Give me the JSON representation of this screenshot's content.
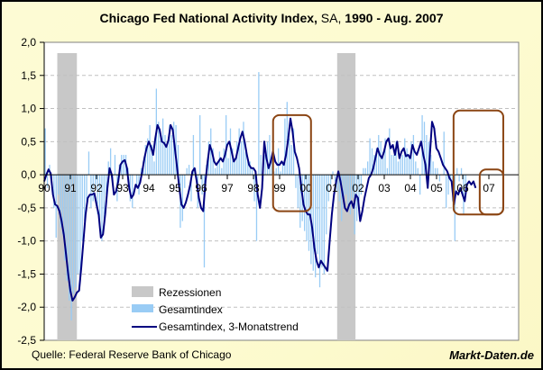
{
  "title": {
    "part1": "Chicago Fed National Activity Index,",
    "part2": " SA,",
    "part3": " 1990 - Aug. 2007"
  },
  "footer": {
    "source": "Quelle: Federal Reserve Bank of Chicago",
    "brand": "Markt-Daten.de"
  },
  "colors": {
    "background": "#fdfbd0",
    "plot_bg": "#ffffff",
    "recession": "#c8c8c8",
    "bars": "#99ccf5",
    "trend": "#000080",
    "highlight": "#8b4513",
    "grid": "#c0c0c0"
  },
  "chart_data": {
    "type": "bar+line",
    "title": "Chicago Fed National Activity Index, SA, 1990 - Aug. 2007",
    "xlabel": "",
    "ylabel": "",
    "ylim": [
      -2.5,
      2.0
    ],
    "xlim": [
      1990.0,
      2008.0
    ],
    "grid": true,
    "y_ticks": [
      "2,0",
      "1,5",
      "1,0",
      "0,5",
      "0,0",
      "-0,5",
      "-1,0",
      "-1,5",
      "-2,0",
      "-2,5"
    ],
    "y_tick_values": [
      2.0,
      1.5,
      1.0,
      0.5,
      0.0,
      -0.5,
      -1.0,
      -1.5,
      -2.0,
      -2.5
    ],
    "x_ticks": [
      "90",
      "91",
      "92",
      "93",
      "94",
      "95",
      "96",
      "97",
      "98",
      "99",
      "00",
      "01",
      "02",
      "03",
      "04",
      "05",
      "06",
      "07"
    ],
    "legend": {
      "position": "bottom-left-inside",
      "entries": [
        "Rezessionen",
        "Gesamtindex",
        "Gesamtindex, 3-Monatstrend"
      ]
    },
    "recessions": [
      {
        "start": 1990.5,
        "end": 1991.25
      },
      {
        "start": 2001.2,
        "end": 2001.9
      }
    ],
    "highlight_boxes": [
      {
        "start": 1998.75,
        "end": 2000.2,
        "ymin": -0.55,
        "ymax": 0.9
      },
      {
        "start": 2005.65,
        "end": 2007.55,
        "ymin": -0.6,
        "ymax": 0.97
      },
      {
        "start": 2006.65,
        "end": 2007.55,
        "ymin": -0.6,
        "ymax": 0.08
      }
    ],
    "series": [
      {
        "name": "Gesamtindex, 3-Monatstrend",
        "type": "line",
        "x_start": 1990.0,
        "step": 0.0833,
        "values": [
          -0.1,
          0.0,
          0.08,
          0.02,
          -0.3,
          -0.45,
          -0.47,
          -0.55,
          -0.7,
          -0.9,
          -1.2,
          -1.5,
          -1.75,
          -1.9,
          -1.85,
          -1.78,
          -1.75,
          -1.4,
          -1.0,
          -0.6,
          -0.35,
          -0.3,
          -0.3,
          -0.28,
          -0.45,
          -0.6,
          -0.95,
          -0.9,
          -0.6,
          -0.2,
          0.1,
          0.0,
          -0.3,
          -0.25,
          -0.1,
          0.15,
          0.2,
          0.22,
          0.1,
          -0.2,
          -0.35,
          -0.3,
          -0.15,
          -0.2,
          -0.12,
          0.05,
          0.25,
          0.4,
          0.5,
          0.42,
          0.3,
          0.55,
          0.75,
          0.68,
          0.5,
          0.48,
          0.42,
          0.52,
          0.75,
          0.68,
          0.4,
          0.1,
          -0.2,
          -0.45,
          -0.5,
          -0.42,
          -0.3,
          -0.15,
          0.05,
          0.1,
          -0.1,
          -0.35,
          -0.5,
          -0.55,
          -0.1,
          0.2,
          0.45,
          0.35,
          0.2,
          0.15,
          0.2,
          0.25,
          0.2,
          0.3,
          0.45,
          0.5,
          0.35,
          0.2,
          0.25,
          0.4,
          0.55,
          0.65,
          0.5,
          0.3,
          0.15,
          0.1,
          0.1,
          0.05,
          -0.3,
          -0.5,
          -0.2,
          0.5,
          0.25,
          0.1,
          0.2,
          0.35,
          0.2,
          0.15,
          0.15,
          0.2,
          0.15,
          0.3,
          0.55,
          0.85,
          0.65,
          0.35,
          0.25,
          0.1,
          -0.2,
          -0.45,
          -0.55,
          -0.6,
          -0.6,
          -0.8,
          -1.1,
          -1.3,
          -1.4,
          -1.3,
          -1.35,
          -1.4,
          -1.45,
          -1.0,
          -0.6,
          -0.3,
          -0.1,
          0.05,
          -0.1,
          -0.3,
          -0.5,
          -0.55,
          -0.45,
          -0.4,
          -0.5,
          -0.3,
          -0.35,
          -0.7,
          -0.55,
          -0.35,
          -0.2,
          -0.05,
          0.0,
          0.1,
          0.25,
          0.4,
          0.3,
          0.25,
          0.35,
          0.5,
          0.55,
          0.4,
          0.45,
          0.3,
          0.5,
          0.25,
          0.35,
          0.4,
          0.28,
          0.3,
          0.25,
          0.45,
          0.35,
          0.3,
          0.4,
          0.5,
          0.3,
          0.15,
          -0.2,
          0.3,
          0.8,
          0.7,
          0.4,
          0.35,
          0.25,
          0.15,
          0.1,
          0.05,
          -0.05,
          -0.1,
          -0.45,
          -0.25,
          -0.3,
          -0.2,
          -0.3,
          -0.4,
          -0.15,
          -0.1,
          -0.15,
          -0.1,
          -0.2
        ]
      },
      {
        "name": "Gesamtindex",
        "type": "bar",
        "x_start": 1990.0,
        "step": 0.0833,
        "values": [
          0.7,
          -0.2,
          0.15,
          -0.05,
          -0.5,
          -0.95,
          -0.3,
          -0.8,
          -0.9,
          -1.3,
          -1.6,
          -1.9,
          -2.2,
          -1.8,
          -1.7,
          -1.5,
          -1.6,
          -1.0,
          -0.7,
          -0.4,
          0.35,
          -0.5,
          -0.4,
          -0.2,
          -0.6,
          -0.75,
          -1.0,
          -0.7,
          -0.3,
          0.2,
          0.4,
          -0.1,
          0.3,
          -0.4,
          0.15,
          0.3,
          0.3,
          0.3,
          0.1,
          -0.4,
          -0.5,
          0.0,
          -0.2,
          -0.3,
          0.1,
          0.2,
          0.45,
          0.55,
          0.75,
          0.45,
          0.2,
          1.3,
          0.8,
          0.55,
          0.85,
          0.6,
          0.45,
          0.75,
          0.6,
          0.8,
          0.75,
          0.45,
          -0.8,
          -0.7,
          -0.2,
          0.1,
          0.15,
          -0.4,
          0.6,
          0.1,
          -0.5,
          0.9,
          -0.3,
          -1.4,
          0.15,
          0.5,
          0.7,
          0.4,
          0.1,
          0.2,
          0.35,
          0.1,
          0.4,
          0.9,
          0.25,
          0.7,
          0.4,
          0.2,
          0.5,
          0.7,
          0.5,
          0.8,
          0.35,
          0.2,
          0.2,
          0.1,
          -0.4,
          -1.0,
          1.55,
          0.3,
          -0.1,
          0.3,
          0.5,
          0.6,
          0.2,
          0.05,
          0.1,
          0.4,
          0.05,
          0.2,
          0.85,
          1.1,
          0.55,
          0.45,
          0.7,
          -0.2,
          -0.5,
          -0.8,
          -0.7,
          -0.85,
          -1.0,
          -1.15,
          -1.35,
          -1.45,
          -1.55,
          -1.2,
          -1.7,
          -1.4,
          -1.5,
          -0.9,
          -0.4,
          -0.15,
          0.05,
          -0.1,
          -0.25,
          -0.4,
          -0.7,
          -0.5,
          -0.3,
          -0.45,
          -0.6,
          -0.35,
          -0.9,
          -0.7,
          -0.4,
          -0.3,
          0.1,
          0.1,
          0.2,
          0.55,
          0.4,
          0.3,
          0.4,
          0.6,
          0.5,
          0.35,
          0.55,
          0.1,
          0.7,
          0.3,
          0.3,
          0.5,
          0.2,
          0.3,
          0.3,
          0.55,
          0.4,
          0.3,
          0.5,
          0.6,
          0.2,
          0.1,
          -0.3,
          0.9,
          0.8,
          0.6,
          0.5,
          0.3,
          0.2,
          0.1,
          0.1,
          -0.1,
          0.0,
          0.65,
          -0.5,
          -0.3,
          -0.1,
          -0.4,
          -1.0,
          0.1,
          -0.1,
          0.1,
          -0.6,
          -0.3
        ]
      }
    ]
  }
}
